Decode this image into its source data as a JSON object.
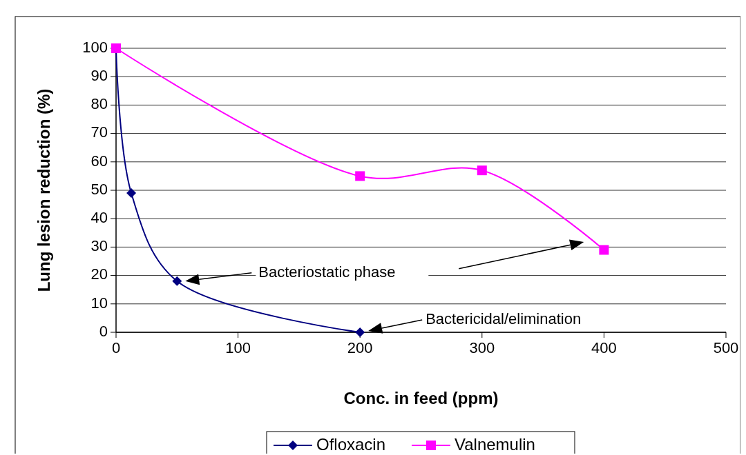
{
  "chart_data": {
    "type": "line",
    "xlabel": "Conc. in feed (ppm)",
    "ylabel": "Lung lesion reduction (%)",
    "xlim": [
      0,
      500
    ],
    "xticks": [
      0,
      100,
      200,
      300,
      400,
      500
    ],
    "ylim": [
      0,
      100
    ],
    "yticks": [
      0,
      10,
      20,
      30,
      40,
      50,
      60,
      70,
      80,
      90,
      100
    ],
    "grid": "y",
    "legend": "bottom",
    "series": [
      {
        "name": "Ofloxacin",
        "color": "#000080",
        "marker": "diamond",
        "x": [
          0,
          12.5,
          50,
          200
        ],
        "values": [
          100,
          49,
          18,
          0
        ]
      },
      {
        "name": "Valnemulin",
        "color": "#ff00ff",
        "marker": "square",
        "x": [
          0,
          200,
          300,
          400
        ],
        "values": [
          100,
          55,
          57,
          29
        ]
      }
    ],
    "annotations": [
      "Bacteriostatic phase",
      "Bactericidal/elimination"
    ]
  }
}
